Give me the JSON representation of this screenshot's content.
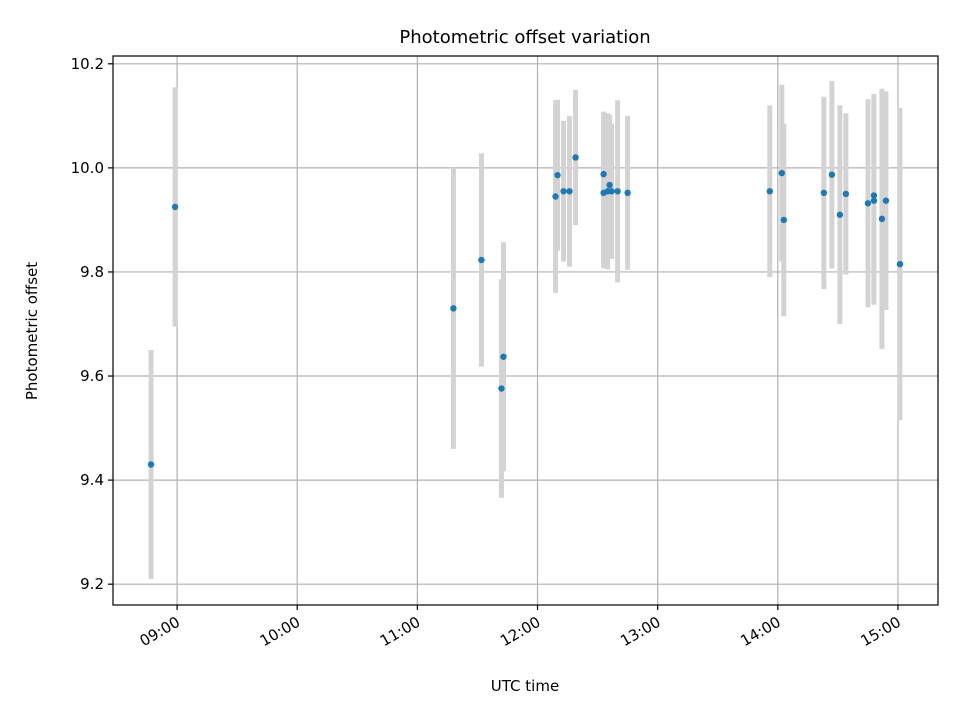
{
  "chart_data": {
    "type": "scatter",
    "title": "Photometric offset variation",
    "xlabel": "UTC time",
    "ylabel": "Photometric offset",
    "x_type": "time",
    "xlim": [
      "08:28",
      "15:20"
    ],
    "ylim": [
      9.16,
      10.215
    ],
    "x_ticks": [
      "09:00",
      "10:00",
      "11:00",
      "12:00",
      "13:00",
      "14:00",
      "15:00"
    ],
    "y_ticks": [
      9.2,
      9.4,
      9.6,
      9.8,
      10.0,
      10.2
    ],
    "grid": true,
    "colors": {
      "point": "#1f77b4",
      "errorbar": "#d3d3d3",
      "grid": "#b0b0b0",
      "axes": "#000000"
    },
    "points": [
      {
        "x": "08:47",
        "y": 9.43,
        "err": 0.22
      },
      {
        "x": "08:59",
        "y": 9.925,
        "err": 0.23
      },
      {
        "x": "11:18",
        "y": 9.73,
        "err": 0.27
      },
      {
        "x": "11:32",
        "y": 9.823,
        "err": 0.205
      },
      {
        "x": "11:42",
        "y": 9.576,
        "err": 0.21
      },
      {
        "x": "11:43",
        "y": 9.637,
        "err": 0.22
      },
      {
        "x": "12:09",
        "y": 9.945,
        "err": 0.185
      },
      {
        "x": "12:10",
        "y": 9.986,
        "err": 0.145
      },
      {
        "x": "12:13",
        "y": 9.955,
        "err": 0.135
      },
      {
        "x": "12:16",
        "y": 9.955,
        "err": 0.145
      },
      {
        "x": "12:19",
        "y": 10.02,
        "err": 0.13
      },
      {
        "x": "12:33",
        "y": 9.988,
        "err": 0.12
      },
      {
        "x": "12:33",
        "y": 9.952,
        "err": 0.145
      },
      {
        "x": "12:35",
        "y": 9.955,
        "err": 0.15
      },
      {
        "x": "12:36",
        "y": 9.967,
        "err": 0.135
      },
      {
        "x": "12:37",
        "y": 9.955,
        "err": 0.13
      },
      {
        "x": "12:40",
        "y": 9.955,
        "err": 0.175
      },
      {
        "x": "12:45",
        "y": 9.952,
        "err": 0.148
      },
      {
        "x": "13:56",
        "y": 9.955,
        "err": 0.165
      },
      {
        "x": "14:02",
        "y": 9.99,
        "err": 0.17
      },
      {
        "x": "14:03",
        "y": 9.9,
        "err": 0.185
      },
      {
        "x": "14:23",
        "y": 9.952,
        "err": 0.185
      },
      {
        "x": "14:27",
        "y": 9.987,
        "err": 0.18
      },
      {
        "x": "14:31",
        "y": 9.91,
        "err": 0.21
      },
      {
        "x": "14:34",
        "y": 9.95,
        "err": 0.155
      },
      {
        "x": "14:45",
        "y": 9.932,
        "err": 0.2
      },
      {
        "x": "14:48",
        "y": 9.937,
        "err": 0.2
      },
      {
        "x": "14:48",
        "y": 9.947,
        "err": 0.195
      },
      {
        "x": "14:52",
        "y": 9.902,
        "err": 0.25
      },
      {
        "x": "14:54",
        "y": 9.937,
        "err": 0.21
      },
      {
        "x": "15:01",
        "y": 9.815,
        "err": 0.3
      }
    ]
  }
}
